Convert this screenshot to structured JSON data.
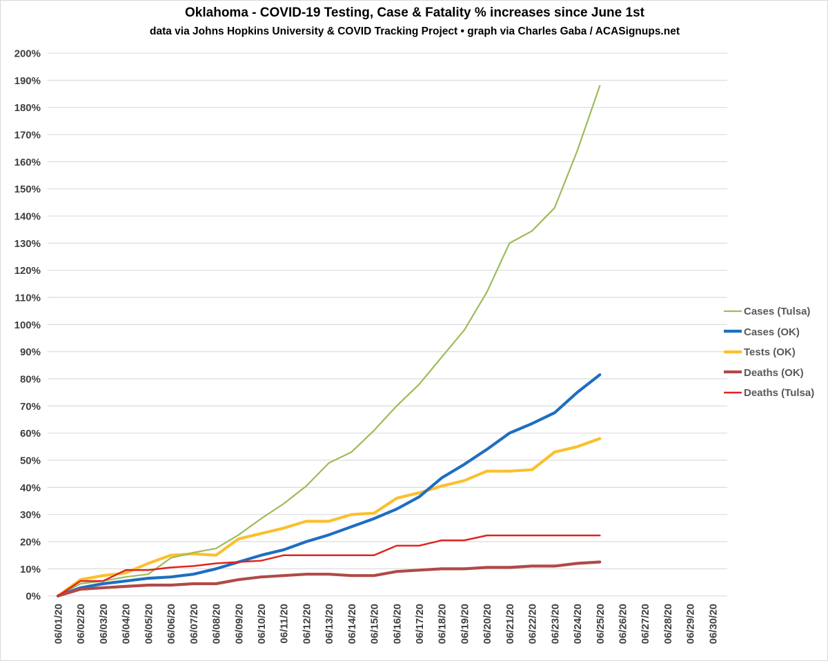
{
  "chart_data": {
    "type": "line",
    "title": "Oklahoma - COVID-19 Testing, Case & Fatality % increases since June 1st",
    "subtitle": "data via Johns Hopkins University & COVID Tracking Project • graph via Charles Gaba / ACASignups.net",
    "xlabel": "",
    "ylabel": "",
    "ylim": [
      0,
      200
    ],
    "ytick_step": 10,
    "grid": true,
    "legend_position": "right",
    "y_tick_labels": [
      "0%",
      "10%",
      "20%",
      "30%",
      "40%",
      "50%",
      "60%",
      "70%",
      "80%",
      "90%",
      "100%",
      "110%",
      "120%",
      "130%",
      "140%",
      "150%",
      "160%",
      "170%",
      "180%",
      "190%",
      "200%"
    ],
    "categories": [
      "06/01/20",
      "06/02/20",
      "06/03/20",
      "06/04/20",
      "06/05/20",
      "06/06/20",
      "06/07/20",
      "06/08/20",
      "06/09/20",
      "06/10/20",
      "06/11/20",
      "06/12/20",
      "06/13/20",
      "06/14/20",
      "06/15/20",
      "06/16/20",
      "06/17/20",
      "06/18/20",
      "06/19/20",
      "06/20/20",
      "06/21/20",
      "06/22/20",
      "06/23/20",
      "06/24/20",
      "06/25/20",
      "06/26/20",
      "06/27/20",
      "06/28/20",
      "06/29/20",
      "06/30/20"
    ],
    "series": [
      {
        "name": "Cases (Tulsa)",
        "color": "#9cbb58",
        "line_width": 2.2,
        "values": [
          0,
          4.5,
          5.5,
          7,
          8,
          14,
          16,
          17.5,
          22.5,
          28.5,
          34,
          40.5,
          49,
          53,
          61,
          70,
          78,
          88,
          98,
          112,
          130,
          134.5,
          143,
          164,
          188
        ]
      },
      {
        "name": "Cases (OK)",
        "color": "#1d6ec1",
        "line_width": 4.2,
        "values": [
          0,
          3,
          4.5,
          5.5,
          6.5,
          7,
          8,
          10,
          12.5,
          15,
          17,
          20,
          22.5,
          25.5,
          28.5,
          32,
          36.5,
          43.5,
          48.5,
          54,
          60,
          63.5,
          67.5,
          75,
          81.5
        ]
      },
      {
        "name": "Tests (OK)",
        "color": "#fcbf2d",
        "line_width": 4.2,
        "values": [
          0,
          6,
          7.5,
          8.5,
          12,
          15,
          15.5,
          15,
          21,
          23,
          25,
          27.5,
          27.5,
          30,
          30.5,
          36,
          38,
          40.5,
          42.5,
          46,
          46,
          46.5,
          53,
          55,
          58
        ]
      },
      {
        "name": "Deaths (OK)",
        "color": "#b04a47",
        "line_width": 4.2,
        "values": [
          0,
          2.5,
          3,
          3.5,
          4,
          4,
          4.5,
          4.5,
          6,
          7,
          7.5,
          8,
          8,
          7.5,
          7.5,
          9,
          9.5,
          10,
          10,
          10.5,
          10.5,
          11,
          11,
          12,
          12.5
        ]
      },
      {
        "name": "Deaths (Tulsa)",
        "color": "#e02420",
        "line_width": 2.5,
        "values": [
          0,
          5.5,
          5.5,
          9.5,
          9.5,
          10.5,
          11,
          12,
          12.5,
          13,
          15,
          15,
          15,
          15,
          15,
          18.5,
          18.5,
          20.5,
          20.5,
          22.3,
          22.3,
          22.3,
          22.3,
          22.3,
          22.3
        ]
      }
    ],
    "colors": {
      "gridline": "#dcdcdc",
      "axis_text": "#3f3f3f",
      "legend_text": "#595959",
      "title_text": "#000000"
    }
  }
}
